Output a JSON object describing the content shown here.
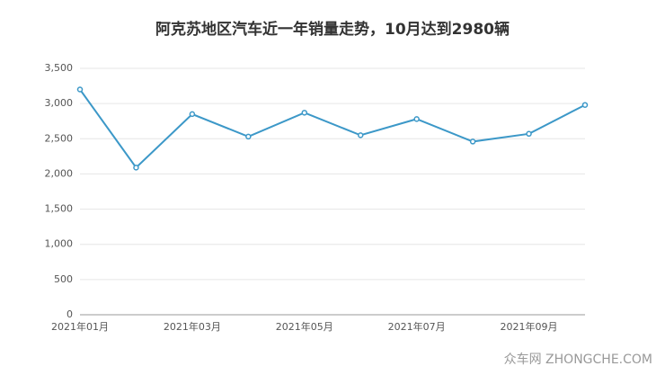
{
  "chart_data": {
    "type": "line",
    "title": "阿克苏地区汽车近一年销量走势，10月达到2980辆",
    "categories": [
      "2021年01月",
      null,
      "2021年03月",
      null,
      "2021年05月",
      null,
      "2021年07月",
      null,
      "2021年09月",
      null
    ],
    "series": [
      {
        "name": "销量",
        "color": "#3c98c8",
        "values": [
          3200,
          2090,
          2850,
          2530,
          2870,
          2550,
          2780,
          2460,
          2570,
          2980
        ]
      }
    ],
    "ylim": [
      0,
      3500
    ],
    "yticks": [
      0,
      500,
      {
        "value": 1000,
        "label": "1,000"
      },
      {
        "value": 1500,
        "label": "1,500"
      },
      {
        "value": 2000,
        "label": "2,000"
      },
      {
        "value": 2500,
        "label": "2,500"
      },
      {
        "value": 3000,
        "label": "3,000"
      },
      {
        "value": 3500,
        "label": "3,500"
      }
    ],
    "grid": true,
    "watermark": "众车网 ZHONGCHE.COM"
  }
}
